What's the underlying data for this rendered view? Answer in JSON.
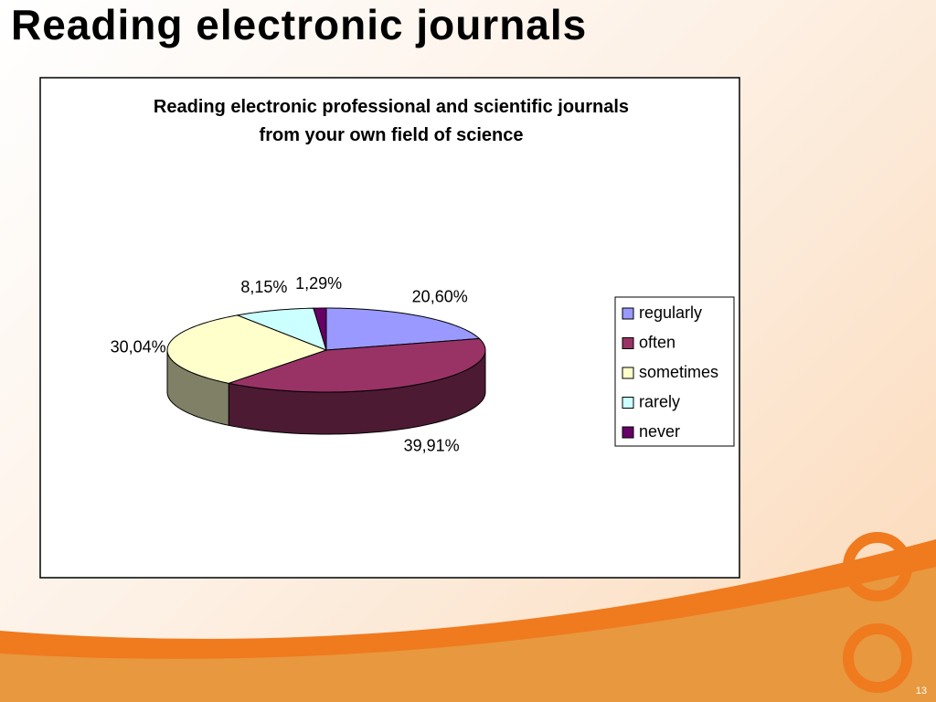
{
  "slide": {
    "title": "Reading electronic journals",
    "page_number": "13"
  },
  "chart_data": {
    "type": "pie3d",
    "title": "Reading electronic professional and scientific journals from your own field of science",
    "categories": [
      "regularly",
      "often",
      "sometimes",
      "rarely",
      "never"
    ],
    "values": [
      20.6,
      39.91,
      30.04,
      8.15,
      1.29
    ],
    "value_labels": [
      "20,60%",
      "39,91%",
      "30,04%",
      "8,15%",
      "1,29%"
    ],
    "colors": [
      "#9999ff",
      "#993366",
      "#ffffcc",
      "#ccffff",
      "#660066"
    ],
    "legend": "right"
  }
}
